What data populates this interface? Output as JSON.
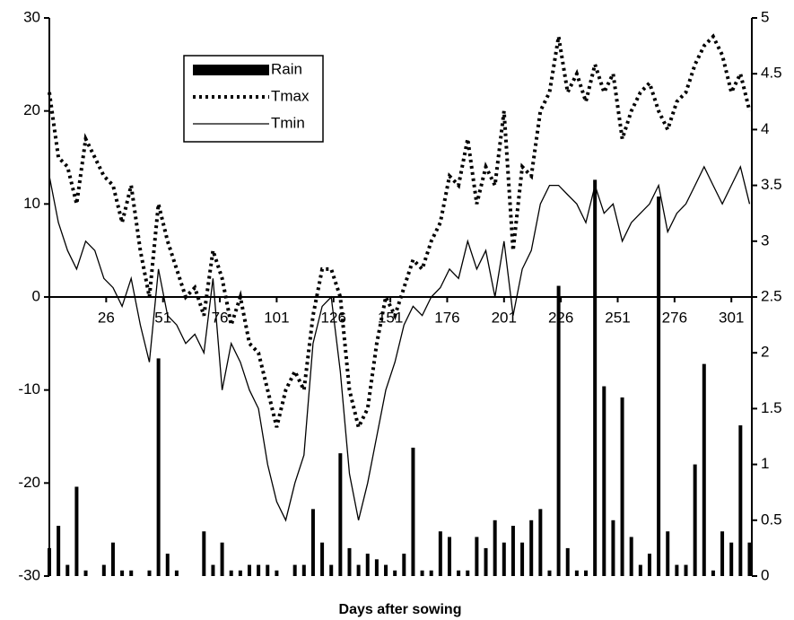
{
  "chart_data": {
    "type": "combo",
    "x_label": "Days after sowing",
    "x": [
      1,
      5,
      9,
      13,
      17,
      21,
      25,
      29,
      33,
      37,
      41,
      45,
      49,
      53,
      57,
      61,
      65,
      69,
      73,
      77,
      81,
      85,
      89,
      93,
      97,
      101,
      105,
      109,
      113,
      117,
      121,
      125,
      129,
      133,
      137,
      141,
      145,
      149,
      153,
      157,
      161,
      165,
      169,
      173,
      177,
      181,
      185,
      189,
      193,
      197,
      201,
      205,
      209,
      213,
      217,
      221,
      225,
      229,
      233,
      237,
      241,
      245,
      249,
      253,
      257,
      261,
      265,
      269,
      273,
      277,
      281,
      285,
      289,
      293,
      297,
      301,
      305,
      309
    ],
    "series": [
      {
        "name": "Rain",
        "type": "bar",
        "axis": "y2",
        "color": "#000000",
        "values": [
          0.25,
          0.45,
          0.1,
          0.8,
          0.05,
          0,
          0.1,
          0.3,
          0.05,
          0.05,
          0,
          0.05,
          1.95,
          0.2,
          0.05,
          0,
          0,
          0.4,
          0.1,
          0.3,
          0.05,
          0.05,
          0.1,
          0.1,
          0.1,
          0.05,
          0,
          0.1,
          0.1,
          0.6,
          0.3,
          0.1,
          1.1,
          0.25,
          0.1,
          0.2,
          0.15,
          0.1,
          0.05,
          0.2,
          1.15,
          0.05,
          0.05,
          0.4,
          0.35,
          0.05,
          0.05,
          0.35,
          0.25,
          0.5,
          0.3,
          0.45,
          0.3,
          0.5,
          0.6,
          0.05,
          2.6,
          0.25,
          0.05,
          0.05,
          3.55,
          1.7,
          0.5,
          1.6,
          0.35,
          0.1,
          0.2,
          3.4,
          0.4,
          0.1,
          0.1,
          1.0,
          1.9,
          0.05,
          0.4,
          0.3,
          1.35,
          0.3
        ]
      },
      {
        "name": "Tmax",
        "type": "line",
        "dash": "dotted",
        "color": "#000000",
        "values": [
          22,
          15,
          14,
          10,
          17,
          15,
          13,
          12,
          8,
          12,
          5,
          0,
          10,
          6,
          3,
          0,
          1,
          -2,
          5,
          2,
          -3,
          0,
          -5,
          -6,
          -10,
          -14,
          -10,
          -8,
          -10,
          -2,
          3,
          3,
          0,
          -10,
          -14,
          -12,
          -5,
          0,
          -2,
          1,
          4,
          3,
          6,
          8,
          13,
          12,
          17,
          10,
          14,
          12,
          20,
          5,
          14,
          13,
          20,
          22,
          28,
          22,
          24,
          21,
          25,
          22,
          24,
          17,
          20,
          22,
          23,
          20,
          18,
          21,
          22,
          25,
          27,
          28,
          26,
          22,
          24,
          20
        ]
      },
      {
        "name": "Tmin",
        "type": "line",
        "dash": "solid",
        "color": "#000000",
        "values": [
          13,
          8,
          5,
          3,
          6,
          5,
          2,
          1,
          -1,
          2,
          -3,
          -7,
          3,
          -2,
          -3,
          -5,
          -4,
          -6,
          2,
          -10,
          -5,
          -7,
          -10,
          -12,
          -18,
          -22,
          -24,
          -20,
          -17,
          -5,
          -1,
          0,
          -8,
          -19,
          -24,
          -20,
          -15,
          -10,
          -7,
          -3,
          -1,
          -2,
          0,
          1,
          3,
          2,
          6,
          3,
          5,
          0,
          6,
          -2,
          3,
          5,
          10,
          12,
          12,
          11,
          10,
          8,
          12,
          9,
          10,
          6,
          8,
          9,
          10,
          12,
          7,
          9,
          10,
          12,
          14,
          12,
          10,
          12,
          14,
          10
        ]
      }
    ],
    "xlim": [
      1,
      310
    ],
    "xticks": [
      26,
      51,
      76,
      101,
      126,
      151,
      176,
      201,
      226,
      251,
      276,
      301
    ],
    "ylim": [
      -30,
      30
    ],
    "yticks": [
      -30,
      -20,
      -10,
      0,
      10,
      20,
      30
    ],
    "y2lim": [
      0,
      5
    ],
    "y2ticks": [
      0,
      0.5,
      1,
      1.5,
      2,
      2.5,
      3,
      3.5,
      4,
      4.5,
      5
    ],
    "legend": "upper left"
  }
}
